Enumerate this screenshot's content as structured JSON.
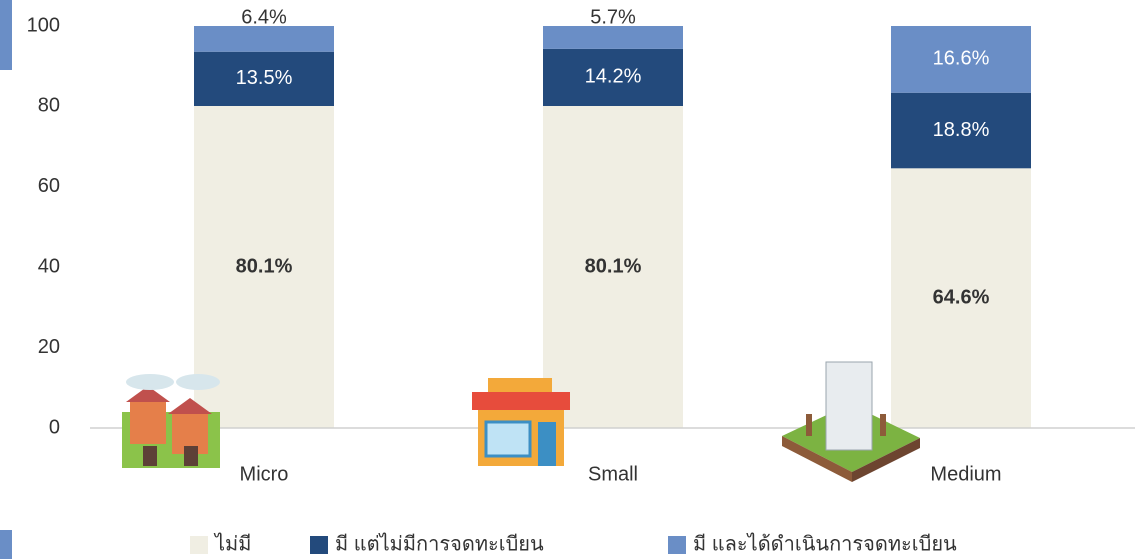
{
  "chart_data": {
    "type": "stacked_bar",
    "categories": [
      "Micro",
      "Small",
      "Medium"
    ],
    "series": [
      {
        "name": "ไม่มี",
        "color": "#f0eee3",
        "values": [
          80.1,
          80.1,
          64.6
        ],
        "value_labels": [
          "80.1%",
          "80.1%",
          "64.6%"
        ]
      },
      {
        "name": "มี แต่ไม่มีการจดทะเบียน",
        "color": "#234a7c",
        "values": [
          13.5,
          14.2,
          18.8
        ],
        "value_labels": [
          "13.5%",
          "14.2%",
          "18.8%"
        ]
      },
      {
        "name": "มี และได้ดำเนินการจดทะเบียน",
        "color": "#6a8ec6",
        "values": [
          6.4,
          5.7,
          16.6
        ],
        "value_labels": [
          "6.4%",
          "5.7%",
          "16.6%"
        ]
      }
    ],
    "ylim": [
      0,
      100
    ],
    "yticks": [
      0,
      20,
      40,
      60,
      80,
      100
    ],
    "grid": false,
    "legend": "bottom"
  }
}
